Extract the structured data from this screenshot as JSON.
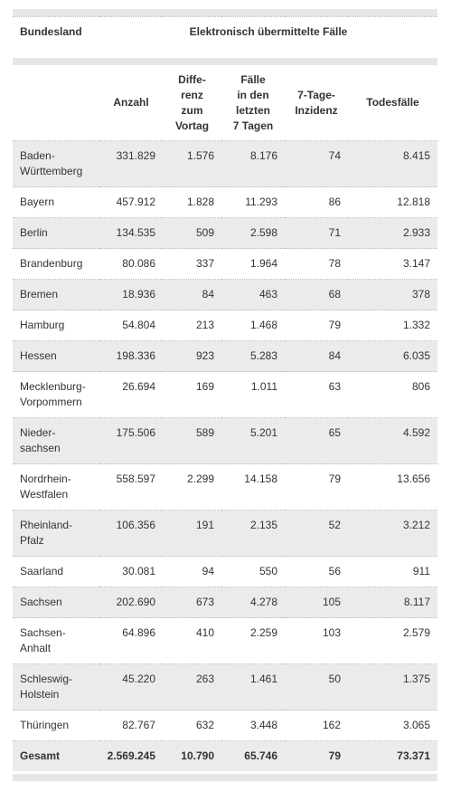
{
  "table": {
    "header": {
      "first": "Bundesland",
      "group": "Elektronisch übermittelte Fälle"
    },
    "columns": [
      "Anzahl",
      "Diffe-\nrenz\nzum\nVortag",
      "Fälle\nin den\nletzten\n7 Tagen",
      "7-Tage-\nInzidenz",
      "Todesfälle"
    ],
    "rows": [
      [
        "Baden-\nWürttemberg",
        "331.829",
        "1.576",
        "8.176",
        "74",
        "8.415"
      ],
      [
        "Bayern",
        "457.912",
        "1.828",
        "11.293",
        "86",
        "12.818"
      ],
      [
        "Berlin",
        "134.535",
        "509",
        "2.598",
        "71",
        "2.933"
      ],
      [
        "Brandenburg",
        "80.086",
        "337",
        "1.964",
        "78",
        "3.147"
      ],
      [
        "Bremen",
        "18.936",
        "84",
        "463",
        "68",
        "378"
      ],
      [
        "Hamburg",
        "54.804",
        "213",
        "1.468",
        "79",
        "1.332"
      ],
      [
        "Hessen",
        "198.336",
        "923",
        "5.283",
        "84",
        "6.035"
      ],
      [
        "Mecklenburg-\nVorpommern",
        "26.694",
        "169",
        "1.011",
        "63",
        "806"
      ],
      [
        "Nieder-\nsachsen",
        "175.506",
        "589",
        "5.201",
        "65",
        "4.592"
      ],
      [
        "Nordrhein-\nWestfalen",
        "558.597",
        "2.299",
        "14.158",
        "79",
        "13.656"
      ],
      [
        "Rheinland-\nPfalz",
        "106.356",
        "191",
        "2.135",
        "52",
        "3.212"
      ],
      [
        "Saarland",
        "30.081",
        "94",
        "550",
        "56",
        "911"
      ],
      [
        "Sachsen",
        "202.690",
        "673",
        "4.278",
        "105",
        "8.117"
      ],
      [
        "Sachsen-\nAnhalt",
        "64.896",
        "410",
        "2.259",
        "103",
        "2.579"
      ],
      [
        "Schleswig-\nHolstein",
        "45.220",
        "263",
        "1.461",
        "50",
        "1.375"
      ],
      [
        "Thüringen",
        "82.767",
        "632",
        "3.448",
        "162",
        "3.065"
      ]
    ],
    "total": [
      "Gesamt",
      "2.569.245",
      "10.790",
      "65.746",
      "79",
      "73.371"
    ]
  }
}
